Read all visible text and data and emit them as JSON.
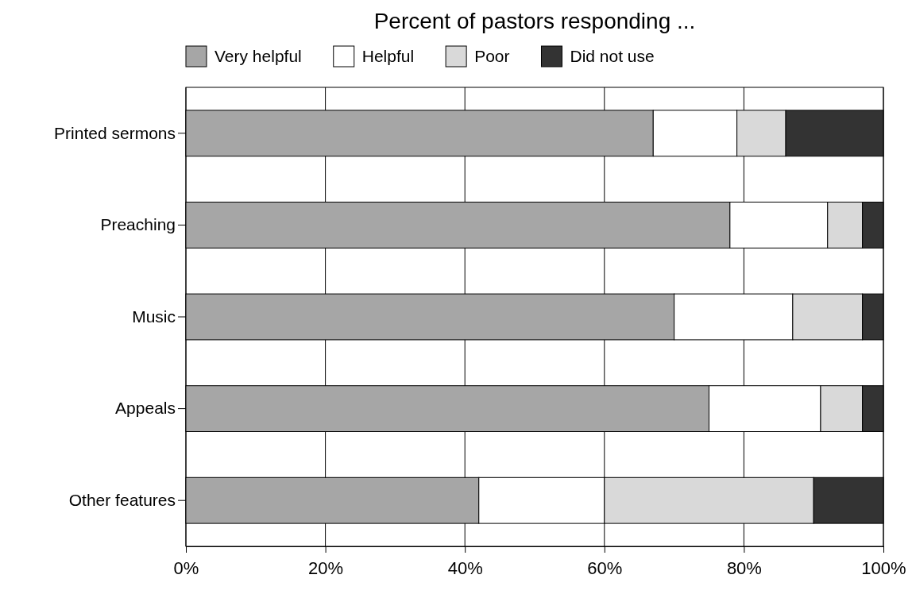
{
  "chart_data": {
    "type": "bar",
    "title": "Percent of pastors responding ...",
    "orientation": "horizontal",
    "stacked": true,
    "categories": [
      "Printed sermons",
      "Preaching",
      "Music",
      "Appeals",
      "Other features"
    ],
    "series": [
      {
        "name": "Very helpful",
        "color": "#a6a6a6",
        "values": [
          67,
          78,
          70,
          75,
          42
        ]
      },
      {
        "name": "Helpful",
        "color": "#ffffff",
        "values": [
          12,
          14,
          17,
          16,
          18
        ]
      },
      {
        "name": "Poor",
        "color": "#d9d9d9",
        "values": [
          7,
          5,
          10,
          6,
          30
        ]
      },
      {
        "name": "Did not use",
        "color": "#333333",
        "values": [
          14,
          3,
          3,
          3,
          10
        ]
      }
    ],
    "xlim": [
      0,
      100
    ],
    "xticks": [
      {
        "value": 0,
        "label": "0%"
      },
      {
        "value": 20,
        "label": "20%"
      },
      {
        "value": 40,
        "label": "40%"
      },
      {
        "value": 60,
        "label": "60%"
      },
      {
        "value": 80,
        "label": "80%"
      },
      {
        "value": 100,
        "label": "100%"
      }
    ],
    "grid": "x",
    "legend": "top left"
  }
}
